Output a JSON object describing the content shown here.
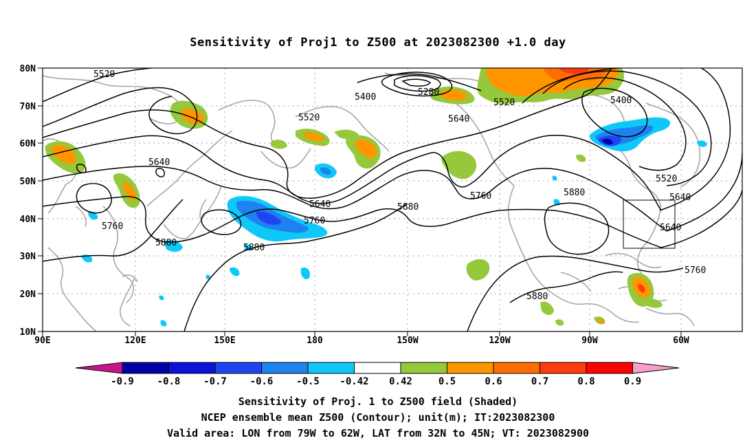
{
  "title": "Sensitivity of Proj1 to Z500 at 2023082300 +1.0 day",
  "lon_ticks": [
    "90E",
    "120E",
    "150E",
    "180",
    "150W",
    "120W",
    "90W",
    "60W"
  ],
  "lat_ticks": [
    "80N",
    "70N",
    "60N",
    "50N",
    "40N",
    "30N",
    "20N",
    "10N"
  ],
  "contour_labels": [
    "5520",
    "5400",
    "5280",
    "5520",
    "5400",
    "5520",
    "5640",
    "5640",
    "5520",
    "5640",
    "5880",
    "5760",
    "5640",
    "5760",
    "5880",
    "5760",
    "5880",
    "5880",
    "5640",
    "5760",
    "5880",
    "5880"
  ],
  "colorbar": {
    "tick_labels": [
      "-0.9",
      "-0.8",
      "-0.7",
      "-0.6",
      "-0.5",
      "-0.42",
      "0.42",
      "0.5",
      "0.6",
      "0.7",
      "0.8",
      "0.9"
    ],
    "colors": [
      "#0000a8",
      "#0a14d8",
      "#1e46f0",
      "#1e82f0",
      "#10c8f8",
      "#ffffff",
      "#96c83c",
      "#ff9600",
      "#ff6e00",
      "#ff3a10",
      "#ff0000"
    ],
    "low_extend_color": "#c8148c",
    "high_extend_color": "#f5a0c8"
  },
  "captions": [
    "Sensitivity of Proj. 1 to Z500 field (Shaded)",
    "NCEP ensemble mean Z500 (Contour); unit(m); IT:2023082300",
    "Valid area: LON from 79W to 62W, LAT from 32N to 45N; VT: 2023082900"
  ]
}
